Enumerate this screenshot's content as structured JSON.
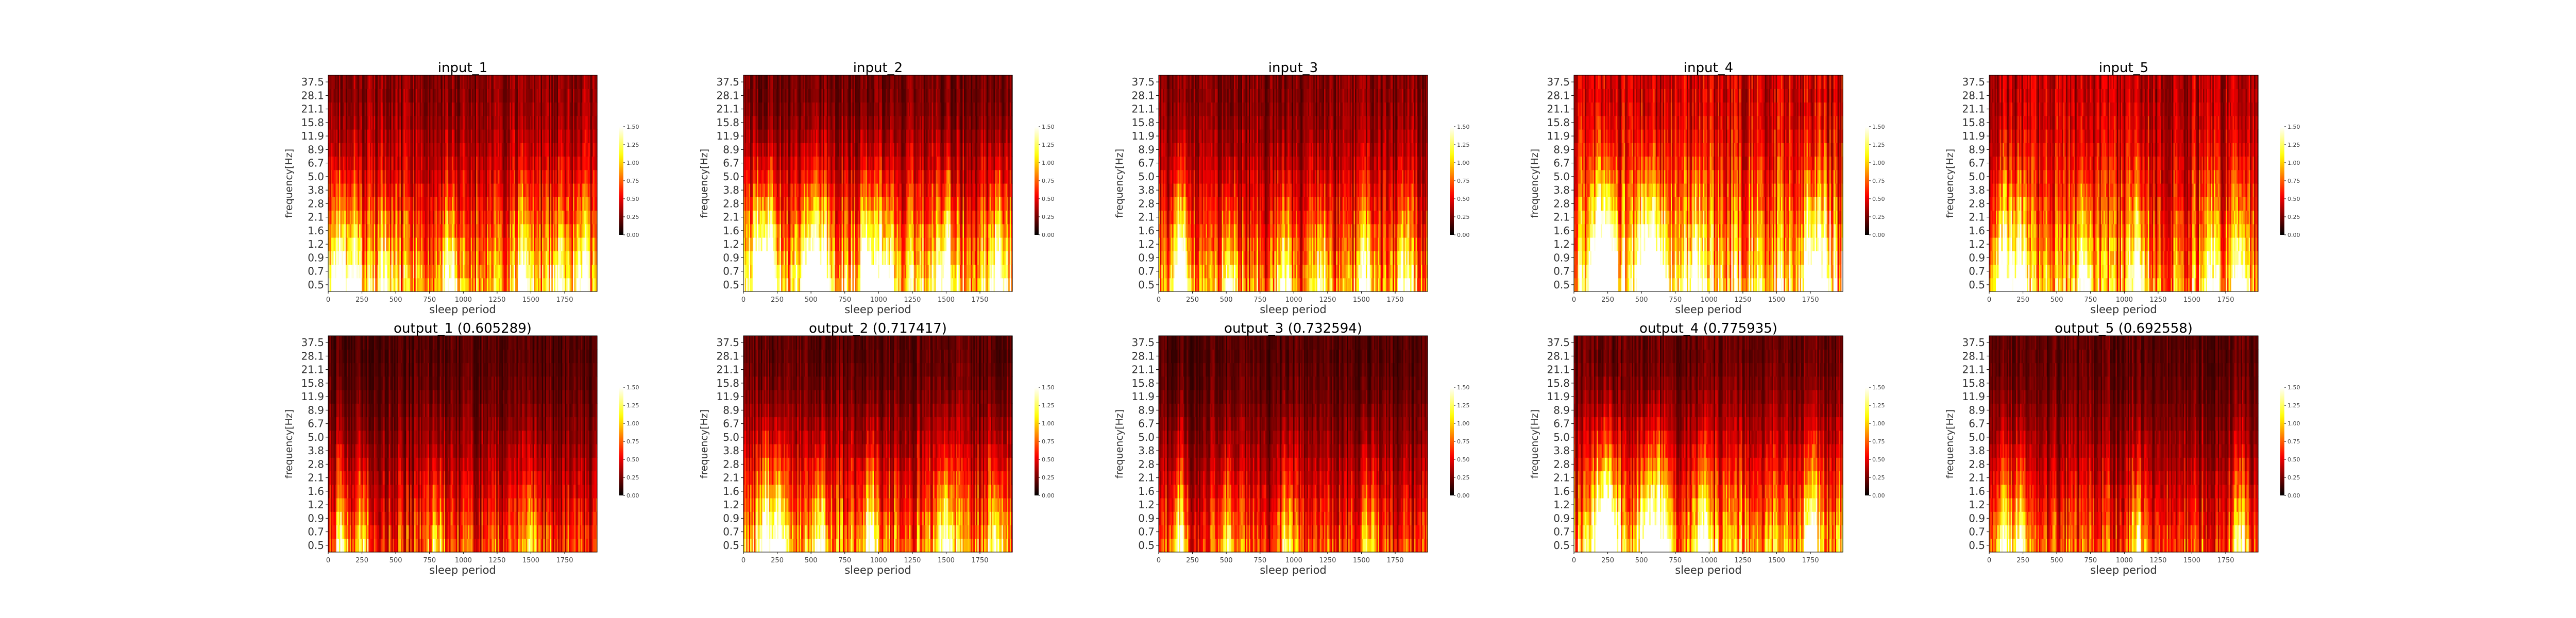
{
  "colors": {
    "colormap": "hot",
    "background": "#ffffff",
    "text": "#000000",
    "axis_text": "#333333"
  },
  "chart_data": [
    {
      "type": "heatmap",
      "title": "input_1",
      "xlabel": "sleep period",
      "ylabel": "frequency[Hz]",
      "x_ticks": [
        "0",
        "250",
        "500",
        "750",
        "1000",
        "1250",
        "1500",
        "1750"
      ],
      "xlim": [
        0,
        1990
      ],
      "y_ticks": [
        "0.5",
        "0.7",
        "0.9",
        "1.2",
        "1.6",
        "2.1",
        "2.8",
        "3.8",
        "5.0",
        "6.7",
        "8.9",
        "11.9",
        "15.8",
        "21.1",
        "28.1",
        "37.5"
      ],
      "colorbar_ticks": [
        "0.00",
        "0.25",
        "0.50",
        "0.75",
        "1.00",
        "1.25",
        "1.50"
      ],
      "clim": [
        0,
        1.5
      ],
      "low_freq_intensity": 0.95,
      "high_freq_intensity": 0.3,
      "bursts": [
        [
          80,
          1.3
        ],
        [
          200,
          1.0
        ],
        [
          420,
          0.8
        ],
        [
          900,
          0.9
        ],
        [
          1450,
          0.8
        ],
        [
          1700,
          0.7
        ],
        [
          1870,
          0.8
        ]
      ]
    },
    {
      "type": "heatmap",
      "title": "input_2",
      "xlabel": "sleep period",
      "ylabel": "frequency[Hz]",
      "x_ticks": [
        "0",
        "250",
        "500",
        "750",
        "1000",
        "1250",
        "1500",
        "1750"
      ],
      "xlim": [
        0,
        1990
      ],
      "y_ticks": [
        "0.5",
        "0.7",
        "0.9",
        "1.2",
        "1.6",
        "2.1",
        "2.8",
        "3.8",
        "5.0",
        "6.7",
        "8.9",
        "11.9",
        "15.8",
        "21.1",
        "28.1",
        "37.5"
      ],
      "colorbar_ticks": [
        "0.00",
        "0.25",
        "0.50",
        "0.75",
        "1.00",
        "1.25",
        "1.50"
      ],
      "clim": [
        0,
        1.5
      ],
      "low_freq_intensity": 1.1,
      "high_freq_intensity": 0.25,
      "bursts": [
        [
          120,
          1.5
        ],
        [
          200,
          1.3
        ],
        [
          480,
          1.1
        ],
        [
          580,
          1.2
        ],
        [
          920,
          1.4
        ],
        [
          1050,
          1.0
        ],
        [
          1500,
          1.2
        ],
        [
          1880,
          1.0
        ]
      ]
    },
    {
      "type": "heatmap",
      "title": "input_3",
      "xlabel": "sleep period",
      "ylabel": "frequency[Hz]",
      "x_ticks": [
        "0",
        "250",
        "500",
        "750",
        "1000",
        "1250",
        "1500",
        "1750"
      ],
      "xlim": [
        0,
        1990
      ],
      "y_ticks": [
        "0.5",
        "0.7",
        "0.9",
        "1.2",
        "1.6",
        "2.1",
        "2.8",
        "3.8",
        "5.0",
        "6.7",
        "8.9",
        "11.9",
        "15.8",
        "21.1",
        "28.1",
        "37.5"
      ],
      "colorbar_ticks": [
        "0.00",
        "0.25",
        "0.50",
        "0.75",
        "1.00",
        "1.25",
        "1.50"
      ],
      "clim": [
        0,
        1.5
      ],
      "low_freq_intensity": 0.85,
      "high_freq_intensity": 0.28,
      "bursts": [
        [
          160,
          1.5
        ],
        [
          520,
          0.8
        ],
        [
          930,
          0.9
        ],
        [
          1200,
          0.7
        ],
        [
          1530,
          0.8
        ],
        [
          1820,
          0.8
        ]
      ]
    },
    {
      "type": "heatmap",
      "title": "input_4",
      "xlabel": "sleep period",
      "ylabel": "frequency[Hz]",
      "x_ticks": [
        "0",
        "250",
        "500",
        "750",
        "1000",
        "1250",
        "1500",
        "1750"
      ],
      "xlim": [
        0,
        1990
      ],
      "y_ticks": [
        "0.5",
        "0.7",
        "0.9",
        "1.2",
        "1.6",
        "2.1",
        "2.8",
        "3.8",
        "5.0",
        "6.7",
        "8.9",
        "11.9",
        "15.8",
        "21.1",
        "28.1",
        "37.5"
      ],
      "colorbar_ticks": [
        "0.00",
        "0.25",
        "0.50",
        "0.75",
        "1.00",
        "1.25",
        "1.50"
      ],
      "clim": [
        0,
        1.5
      ],
      "low_freq_intensity": 1.15,
      "high_freq_intensity": 0.45,
      "bursts": [
        [
          180,
          1.7
        ],
        [
          260,
          1.6
        ],
        [
          520,
          1.6
        ],
        [
          620,
          1.5
        ],
        [
          900,
          0.9
        ],
        [
          1750,
          1.1
        ],
        [
          1850,
          0.9
        ]
      ]
    },
    {
      "type": "heatmap",
      "title": "input_5",
      "xlabel": "sleep period",
      "ylabel": "frequency[Hz]",
      "x_ticks": [
        "0",
        "250",
        "500",
        "750",
        "1000",
        "1250",
        "1500",
        "1750"
      ],
      "xlim": [
        0,
        1990
      ],
      "y_ticks": [
        "0.5",
        "0.7",
        "0.9",
        "1.2",
        "1.6",
        "2.1",
        "2.8",
        "3.8",
        "5.0",
        "6.7",
        "8.9",
        "11.9",
        "15.8",
        "21.1",
        "28.1",
        "37.5"
      ],
      "colorbar_ticks": [
        "0.00",
        "0.25",
        "0.50",
        "0.75",
        "1.00",
        "1.25",
        "1.50"
      ],
      "clim": [
        0,
        1.5
      ],
      "low_freq_intensity": 0.95,
      "high_freq_intensity": 0.4,
      "bursts": [
        [
          100,
          1.3
        ],
        [
          220,
          1.2
        ],
        [
          700,
          0.8
        ],
        [
          1100,
          0.9
        ],
        [
          1650,
          0.8
        ],
        [
          1860,
          1.0
        ]
      ]
    },
    {
      "type": "heatmap",
      "title": "output_1 (0.605289)",
      "xlabel": "sleep period",
      "ylabel": "frequency[Hz]",
      "x_ticks": [
        "0",
        "250",
        "500",
        "750",
        "1000",
        "1250",
        "1500",
        "1750"
      ],
      "xlim": [
        0,
        1990
      ],
      "y_ticks": [
        "0.5",
        "0.7",
        "0.9",
        "1.2",
        "1.6",
        "2.1",
        "2.8",
        "3.8",
        "5.0",
        "6.7",
        "8.9",
        "11.9",
        "15.8",
        "21.1",
        "28.1",
        "37.5"
      ],
      "colorbar_ticks": [
        "0.00",
        "0.25",
        "0.50",
        "0.75",
        "1.00",
        "1.25",
        "1.50"
      ],
      "clim": [
        0,
        1.5
      ],
      "low_freq_intensity": 0.65,
      "high_freq_intensity": 0.18,
      "bursts": [
        [
          100,
          0.7
        ],
        [
          260,
          0.6
        ],
        [
          800,
          0.5
        ],
        [
          1500,
          0.5
        ]
      ]
    },
    {
      "type": "heatmap",
      "title": "output_2 (0.717417)",
      "xlabel": "sleep period",
      "ylabel": "frequency[Hz]",
      "x_ticks": [
        "0",
        "250",
        "500",
        "750",
        "1000",
        "1250",
        "1500",
        "1750"
      ],
      "xlim": [
        0,
        1990
      ],
      "y_ticks": [
        "0.5",
        "0.7",
        "0.9",
        "1.2",
        "1.6",
        "2.1",
        "2.8",
        "3.8",
        "5.0",
        "6.7",
        "8.9",
        "11.9",
        "15.8",
        "21.1",
        "28.1",
        "37.5"
      ],
      "colorbar_ticks": [
        "0.00",
        "0.25",
        "0.50",
        "0.75",
        "1.00",
        "1.25",
        "1.50"
      ],
      "clim": [
        0,
        1.5
      ],
      "low_freq_intensity": 0.85,
      "high_freq_intensity": 0.2,
      "bursts": [
        [
          160,
          1.1
        ],
        [
          260,
          1.0
        ],
        [
          560,
          0.9
        ],
        [
          940,
          0.9
        ],
        [
          1500,
          0.9
        ],
        [
          1880,
          0.8
        ]
      ]
    },
    {
      "type": "heatmap",
      "title": "output_3 (0.732594)",
      "xlabel": "sleep period",
      "ylabel": "frequency[Hz]",
      "x_ticks": [
        "0",
        "250",
        "500",
        "750",
        "1000",
        "1250",
        "1500",
        "1750"
      ],
      "xlim": [
        0,
        1990
      ],
      "y_ticks": [
        "0.5",
        "0.7",
        "0.9",
        "1.2",
        "1.6",
        "2.1",
        "2.8",
        "3.8",
        "5.0",
        "6.7",
        "8.9",
        "11.9",
        "15.8",
        "21.1",
        "28.1",
        "37.5"
      ],
      "colorbar_ticks": [
        "0.00",
        "0.25",
        "0.50",
        "0.75",
        "1.00",
        "1.25",
        "1.50"
      ],
      "clim": [
        0,
        1.5
      ],
      "low_freq_intensity": 0.65,
      "high_freq_intensity": 0.18,
      "bursts": [
        [
          150,
          0.9
        ],
        [
          500,
          0.6
        ],
        [
          950,
          0.6
        ],
        [
          1550,
          0.6
        ]
      ]
    },
    {
      "type": "heatmap",
      "title": "output_4 (0.775935)",
      "xlabel": "sleep period",
      "ylabel": "frequency[Hz]",
      "x_ticks": [
        "0",
        "250",
        "500",
        "750",
        "1000",
        "1250",
        "1500",
        "1750"
      ],
      "xlim": [
        0,
        1990
      ],
      "y_ticks": [
        "0.5",
        "0.7",
        "0.9",
        "1.2",
        "1.6",
        "2.1",
        "2.8",
        "3.8",
        "5.0",
        "6.7",
        "8.9",
        "11.9",
        "15.8",
        "21.1",
        "28.1",
        "37.5"
      ],
      "colorbar_ticks": [
        "0.00",
        "0.25",
        "0.50",
        "0.75",
        "1.00",
        "1.25",
        "1.50"
      ],
      "clim": [
        0,
        1.5
      ],
      "low_freq_intensity": 0.95,
      "high_freq_intensity": 0.22,
      "bursts": [
        [
          200,
          1.5
        ],
        [
          280,
          1.4
        ],
        [
          540,
          1.3
        ],
        [
          640,
          1.3
        ],
        [
          950,
          0.8
        ],
        [
          1760,
          0.9
        ]
      ]
    },
    {
      "type": "heatmap",
      "title": "output_5 (0.692558)",
      "xlabel": "sleep period",
      "ylabel": "frequency[Hz]",
      "x_ticks": [
        "0",
        "250",
        "500",
        "750",
        "1000",
        "1250",
        "1500",
        "1750"
      ],
      "xlim": [
        0,
        1990
      ],
      "y_ticks": [
        "0.5",
        "0.7",
        "0.9",
        "1.2",
        "1.6",
        "2.1",
        "2.8",
        "3.8",
        "5.0",
        "6.7",
        "8.9",
        "11.9",
        "15.8",
        "21.1",
        "28.1",
        "37.5"
      ],
      "colorbar_ticks": [
        "0.00",
        "0.25",
        "0.50",
        "0.75",
        "1.00",
        "1.25",
        "1.50"
      ],
      "clim": [
        0,
        1.5
      ],
      "low_freq_intensity": 0.7,
      "high_freq_intensity": 0.2,
      "bursts": [
        [
          110,
          0.8
        ],
        [
          230,
          0.8
        ],
        [
          1100,
          0.6
        ],
        [
          1860,
          0.7
        ]
      ]
    }
  ]
}
